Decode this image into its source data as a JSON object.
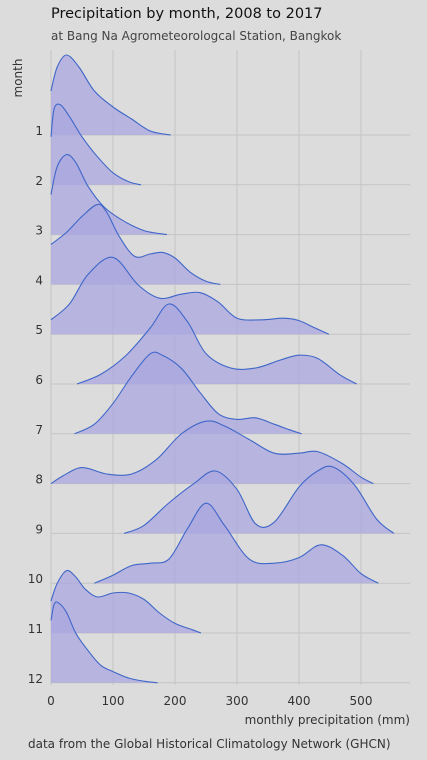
{
  "chart_data": {
    "type": "area",
    "subtype": "ridgeline",
    "title": "Precipitation by month, 2008 to 2017",
    "subtitle": "at Bang Na Agrometeorologcal Station, Bangkok",
    "caption": "data from the Global Historical Climatology Network (GHCN)",
    "xlabel": "monthly precipitation (mm)",
    "ylabel": "month",
    "xlim": [
      0,
      560
    ],
    "x_ticks": [
      "0",
      "100",
      "200",
      "300",
      "400",
      "500"
    ],
    "x_tick_values": [
      0,
      100,
      200,
      300,
      400,
      500
    ],
    "grid": true,
    "colors": {
      "fill": "#a9a6e0",
      "line": "#3f66c8",
      "background": "#dcdcdc",
      "grid": "#c4c4c4"
    },
    "series": [
      {
        "name": "1",
        "x": [
          0,
          10,
          25,
          45,
          70,
          100,
          130,
          160,
          193
        ],
        "y": [
          0.55,
          0.85,
          1.0,
          0.85,
          0.55,
          0.35,
          0.2,
          0.05,
          0.0
        ]
      },
      {
        "name": "2",
        "x": [
          0,
          5,
          15,
          30,
          50,
          75,
          100,
          125,
          145
        ],
        "y": [
          0.6,
          0.95,
          1.0,
          0.85,
          0.6,
          0.35,
          0.15,
          0.04,
          0.0
        ]
      },
      {
        "name": "3",
        "x": [
          0,
          10,
          25,
          40,
          60,
          85,
          115,
          150,
          187
        ],
        "y": [
          0.5,
          0.85,
          1.0,
          0.9,
          0.6,
          0.35,
          0.18,
          0.05,
          0.0
        ]
      },
      {
        "name": "4",
        "x": [
          0,
          25,
          50,
          75,
          90,
          110,
          135,
          160,
          180,
          200,
          225,
          250,
          273
        ],
        "y": [
          0.5,
          0.65,
          0.85,
          1.0,
          0.9,
          0.6,
          0.35,
          0.38,
          0.4,
          0.33,
          0.15,
          0.04,
          0.0
        ]
      },
      {
        "name": "5",
        "x": [
          0,
          30,
          60,
          100,
          140,
          175,
          210,
          240,
          270,
          300,
          340,
          375,
          400,
          425,
          448
        ],
        "y": [
          0.18,
          0.38,
          0.75,
          0.96,
          0.62,
          0.45,
          0.5,
          0.52,
          0.4,
          0.2,
          0.18,
          0.2,
          0.17,
          0.08,
          0.0
        ]
      },
      {
        "name": "6",
        "x": [
          42,
          80,
          120,
          160,
          190,
          220,
          250,
          290,
          330,
          370,
          400,
          430,
          465,
          493
        ],
        "y": [
          0.0,
          0.12,
          0.35,
          0.7,
          1.0,
          0.78,
          0.38,
          0.2,
          0.2,
          0.3,
          0.36,
          0.32,
          0.12,
          0.0
        ]
      },
      {
        "name": "7",
        "x": [
          38,
          70,
          100,
          130,
          160,
          180,
          210,
          240,
          270,
          300,
          330,
          360,
          385,
          404
        ],
        "y": [
          0.0,
          0.12,
          0.38,
          0.72,
          1.0,
          0.98,
          0.82,
          0.52,
          0.25,
          0.18,
          0.2,
          0.12,
          0.05,
          0.0
        ]
      },
      {
        "name": "8",
        "x": [
          0,
          20,
          50,
          90,
          130,
          170,
          210,
          250,
          280,
          320,
          360,
          400,
          430,
          470,
          500,
          520
        ],
        "y": [
          0.0,
          0.1,
          0.2,
          0.12,
          0.12,
          0.3,
          0.62,
          0.78,
          0.72,
          0.55,
          0.38,
          0.38,
          0.4,
          0.25,
          0.08,
          0.0
        ]
      },
      {
        "name": "9",
        "x": [
          118,
          150,
          190,
          230,
          265,
          300,
          330,
          360,
          400,
          430,
          455,
          490,
          525,
          553
        ],
        "y": [
          0.0,
          0.1,
          0.38,
          0.62,
          0.78,
          0.55,
          0.12,
          0.14,
          0.58,
          0.78,
          0.83,
          0.6,
          0.18,
          0.0
        ]
      },
      {
        "name": "10",
        "x": [
          70,
          100,
          130,
          160,
          190,
          220,
          250,
          280,
          320,
          360,
          400,
          435,
          470,
          500,
          528
        ],
        "y": [
          0.0,
          0.1,
          0.22,
          0.25,
          0.3,
          0.68,
          1.0,
          0.72,
          0.3,
          0.25,
          0.32,
          0.48,
          0.35,
          0.12,
          0.0
        ]
      },
      {
        "name": "11",
        "x": [
          0,
          10,
          25,
          40,
          55,
          75,
          100,
          125,
          150,
          175,
          200,
          228,
          242
        ],
        "y": [
          0.4,
          0.62,
          0.78,
          0.7,
          0.55,
          0.45,
          0.5,
          0.5,
          0.42,
          0.25,
          0.12,
          0.04,
          0.0
        ]
      },
      {
        "name": "12",
        "x": [
          0,
          5,
          12,
          25,
          40,
          60,
          80,
          100,
          125,
          150,
          172
        ],
        "y": [
          0.78,
          0.98,
          1.0,
          0.88,
          0.62,
          0.4,
          0.22,
          0.14,
          0.06,
          0.02,
          0.0
        ]
      }
    ]
  }
}
